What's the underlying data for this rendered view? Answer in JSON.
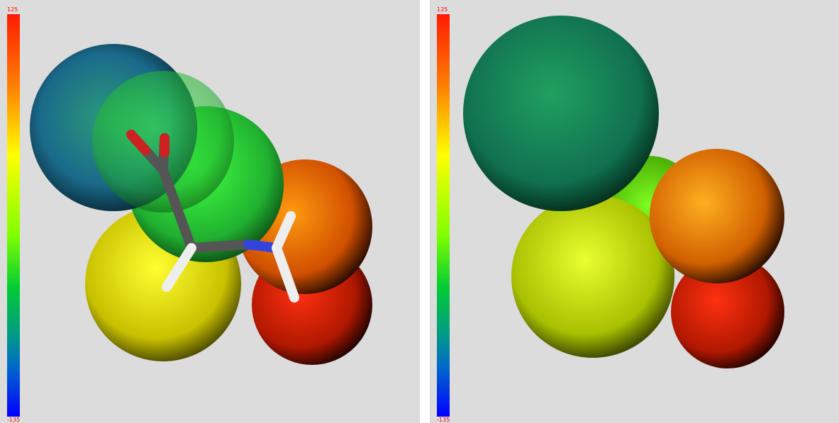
{
  "panels": [
    {
      "scale_max": "125",
      "scale_min": "-135"
    },
    {
      "scale_max": "125",
      "scale_min": "-135"
    }
  ]
}
